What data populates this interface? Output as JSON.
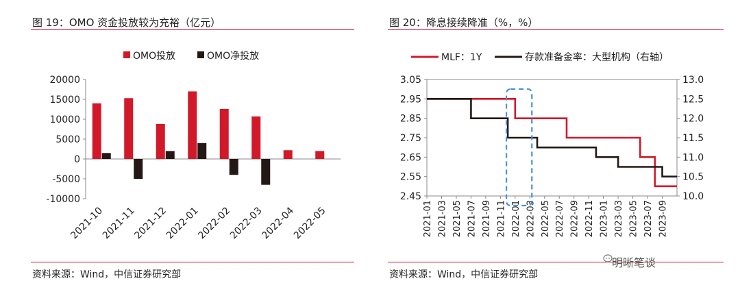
{
  "left_figure": {
    "title": "图 19：OMO 资金投放较为充裕（亿元）",
    "source": "资料来源：Wind，中信证券研究部"
  },
  "right_figure": {
    "title": "图 20：降息接续降准（%，%）",
    "source": "资料来源：Wind，中信证券研究部"
  },
  "watermark": "明晰笔谈",
  "colors": {
    "red": "#d1192a",
    "black": "#231815",
    "rule": "#c8102e",
    "highlight": "#4a90d9"
  },
  "chart_data": [
    {
      "type": "bar",
      "categories": [
        "2021-10",
        "2021-11",
        "2021-12",
        "2022-01",
        "2022-02",
        "2022-03",
        "2022-04",
        "2022-05"
      ],
      "series": [
        {
          "name": "OMO投放",
          "color": "#d1192a",
          "values": [
            14000,
            15300,
            8800,
            17000,
            12600,
            10700,
            2200,
            2000
          ]
        },
        {
          "name": "OMO净投放",
          "color": "#231815",
          "values": [
            1500,
            -5000,
            2000,
            4000,
            -4000,
            -6500,
            null,
            null
          ]
        }
      ],
      "ylim": [
        -10000,
        20000
      ],
      "yticks": [
        20000,
        15000,
        10000,
        5000,
        0,
        -5000,
        -10000
      ],
      "legend": "top"
    },
    {
      "type": "line",
      "x_range": [
        "2021-01",
        "2023-11"
      ],
      "xticks": [
        "2021-01",
        "2021-03",
        "2021-05",
        "2021-07",
        "2021-09",
        "2021-11",
        "2022-01",
        "2022-03",
        "2022-05",
        "2022-07",
        "2022-09",
        "2022-11",
        "2023-01",
        "2023-03",
        "2023-05",
        "2023-07",
        "2023-09"
      ],
      "left_axis": {
        "ylim": [
          2.45,
          3.05
        ],
        "yticks": [
          "3.05",
          "2.95",
          "2.85",
          "2.75",
          "2.65",
          "2.55",
          "2.45"
        ]
      },
      "right_axis": {
        "ylim": [
          10.0,
          13.0
        ],
        "yticks": [
          "13.0",
          "12.5",
          "12.0",
          "11.5",
          "11.0",
          "10.5",
          "10.0"
        ]
      },
      "series": [
        {
          "name": "MLF：1Y",
          "axis": "left",
          "color": "#d1192a",
          "points": [
            [
              "2021-01",
              2.95
            ],
            [
              "2022-01",
              2.85
            ],
            [
              "2022-08",
              2.75
            ],
            [
              "2023-06",
              2.65
            ],
            [
              "2023-08",
              2.5
            ],
            [
              "2023-11",
              2.5
            ]
          ]
        },
        {
          "name": "存款准备金率：大型机构（右轴）",
          "axis": "right",
          "color": "#231815",
          "points": [
            [
              "2021-01",
              12.5
            ],
            [
              "2021-07",
              12.0
            ],
            [
              "2021-12",
              11.5
            ],
            [
              "2022-04",
              11.25
            ],
            [
              "2022-12",
              11.0
            ],
            [
              "2023-03",
              10.75
            ],
            [
              "2023-09",
              10.5
            ],
            [
              "2023-11",
              10.5
            ]
          ]
        }
      ],
      "highlight": {
        "from": "2021-12",
        "to": "2022-03"
      },
      "legend": "top"
    }
  ]
}
